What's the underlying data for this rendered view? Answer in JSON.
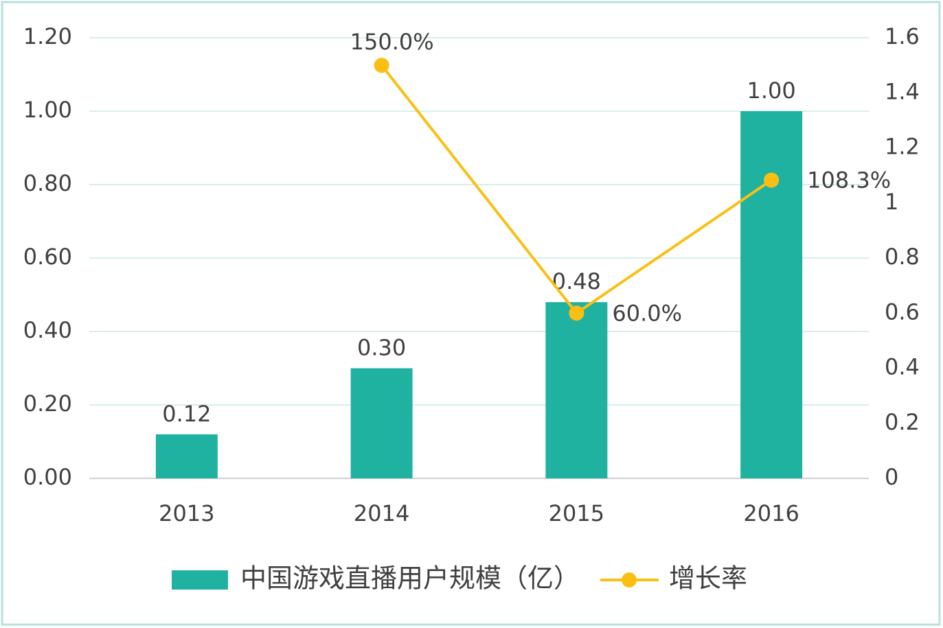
{
  "chart_data": {
    "type": "bar-line",
    "categories": [
      "2013",
      "2014",
      "2015",
      "2016"
    ],
    "series": [
      {
        "name": "中国游戏直播用户规模（亿）",
        "type": "bar",
        "color": "#20b2a0",
        "values": [
          0.12,
          0.3,
          0.48,
          1.0
        ],
        "value_labels": [
          "0.12",
          "0.30",
          "0.48",
          "1.00"
        ]
      },
      {
        "name": "增长率",
        "type": "line",
        "axis": "y2",
        "color": "#fbbf14",
        "values": [
          null,
          1.5,
          0.6,
          1.083
        ],
        "value_labels": [
          null,
          "150.0%",
          "60.0%",
          "108.3%"
        ]
      }
    ],
    "ylim": [
      0,
      1.2
    ],
    "yticks": [
      {
        "value": 0,
        "label": "0.00"
      },
      {
        "value": 0.2,
        "label": "0.20"
      },
      {
        "value": 0.4,
        "label": "0.40"
      },
      {
        "value": 0.6,
        "label": "0.60"
      },
      {
        "value": 0.8,
        "label": "0.80"
      },
      {
        "value": 1.0,
        "label": "1.00"
      },
      {
        "value": 1.2,
        "label": "1.20"
      }
    ],
    "y2lim": [
      0,
      1.6
    ],
    "y2ticks": [
      0,
      0.2,
      0.4,
      0.6,
      0.8,
      1,
      1.2,
      1.4,
      1.6
    ],
    "grid": true
  }
}
